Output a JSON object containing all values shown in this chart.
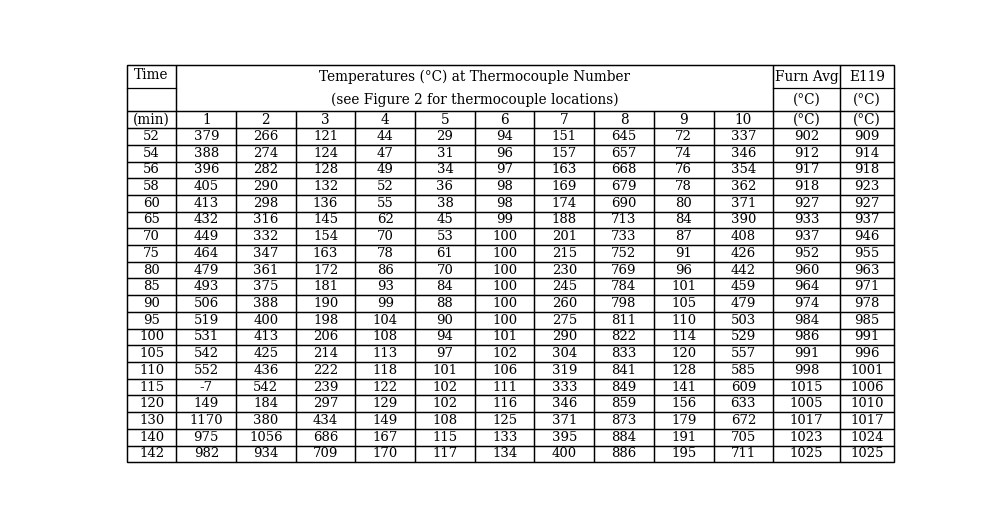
{
  "title_line1": "Temperatures (°C) at Thermocouple Number",
  "title_line2": "(see Figure 2 for thermocouple locations)",
  "col_headers_tc": [
    "1",
    "2",
    "3",
    "4",
    "5",
    "6",
    "7",
    "8",
    "9",
    "10"
  ],
  "rows": [
    [
      "52",
      "379",
      "266",
      "121",
      "44",
      "29",
      "94",
      "151",
      "645",
      "72",
      "337",
      "902",
      "909"
    ],
    [
      "54",
      "388",
      "274",
      "124",
      "47",
      "31",
      "96",
      "157",
      "657",
      "74",
      "346",
      "912",
      "914"
    ],
    [
      "56",
      "396",
      "282",
      "128",
      "49",
      "34",
      "97",
      "163",
      "668",
      "76",
      "354",
      "917",
      "918"
    ],
    [
      "58",
      "405",
      "290",
      "132",
      "52",
      "36",
      "98",
      "169",
      "679",
      "78",
      "362",
      "918",
      "923"
    ],
    [
      "60",
      "413",
      "298",
      "136",
      "55",
      "38",
      "98",
      "174",
      "690",
      "80",
      "371",
      "927",
      "927"
    ],
    [
      "65",
      "432",
      "316",
      "145",
      "62",
      "45",
      "99",
      "188",
      "713",
      "84",
      "390",
      "933",
      "937"
    ],
    [
      "70",
      "449",
      "332",
      "154",
      "70",
      "53",
      "100",
      "201",
      "733",
      "87",
      "408",
      "937",
      "946"
    ],
    [
      "75",
      "464",
      "347",
      "163",
      "78",
      "61",
      "100",
      "215",
      "752",
      "91",
      "426",
      "952",
      "955"
    ],
    [
      "80",
      "479",
      "361",
      "172",
      "86",
      "70",
      "100",
      "230",
      "769",
      "96",
      "442",
      "960",
      "963"
    ],
    [
      "85",
      "493",
      "375",
      "181",
      "93",
      "84",
      "100",
      "245",
      "784",
      "101",
      "459",
      "964",
      "971"
    ],
    [
      "90",
      "506",
      "388",
      "190",
      "99",
      "88",
      "100",
      "260",
      "798",
      "105",
      "479",
      "974",
      "978"
    ],
    [
      "95",
      "519",
      "400",
      "198",
      "104",
      "90",
      "100",
      "275",
      "811",
      "110",
      "503",
      "984",
      "985"
    ],
    [
      "100",
      "531",
      "413",
      "206",
      "108",
      "94",
      "101",
      "290",
      "822",
      "114",
      "529",
      "986",
      "991"
    ],
    [
      "105",
      "542",
      "425",
      "214",
      "113",
      "97",
      "102",
      "304",
      "833",
      "120",
      "557",
      "991",
      "996"
    ],
    [
      "110",
      "552",
      "436",
      "222",
      "118",
      "101",
      "106",
      "319",
      "841",
      "128",
      "585",
      "998",
      "1001"
    ],
    [
      "115",
      "-7",
      "542",
      "239",
      "122",
      "102",
      "111",
      "333",
      "849",
      "141",
      "609",
      "1015",
      "1006"
    ],
    [
      "120",
      "149",
      "184",
      "297",
      "129",
      "102",
      "116",
      "346",
      "859",
      "156",
      "633",
      "1005",
      "1010"
    ],
    [
      "130",
      "1170",
      "380",
      "434",
      "149",
      "108",
      "125",
      "371",
      "873",
      "179",
      "672",
      "1017",
      "1017"
    ],
    [
      "140",
      "975",
      "1056",
      "686",
      "167",
      "115",
      "133",
      "395",
      "884",
      "191",
      "705",
      "1023",
      "1024"
    ],
    [
      "142",
      "982",
      "934",
      "709",
      "170",
      "117",
      "134",
      "400",
      "886",
      "195",
      "711",
      "1025",
      "1025"
    ]
  ],
  "bg_color": "#ffffff",
  "text_color": "#000000",
  "line_color": "#000000",
  "font_size": 9.5,
  "header_font_size": 9.8,
  "font_family": "serif"
}
